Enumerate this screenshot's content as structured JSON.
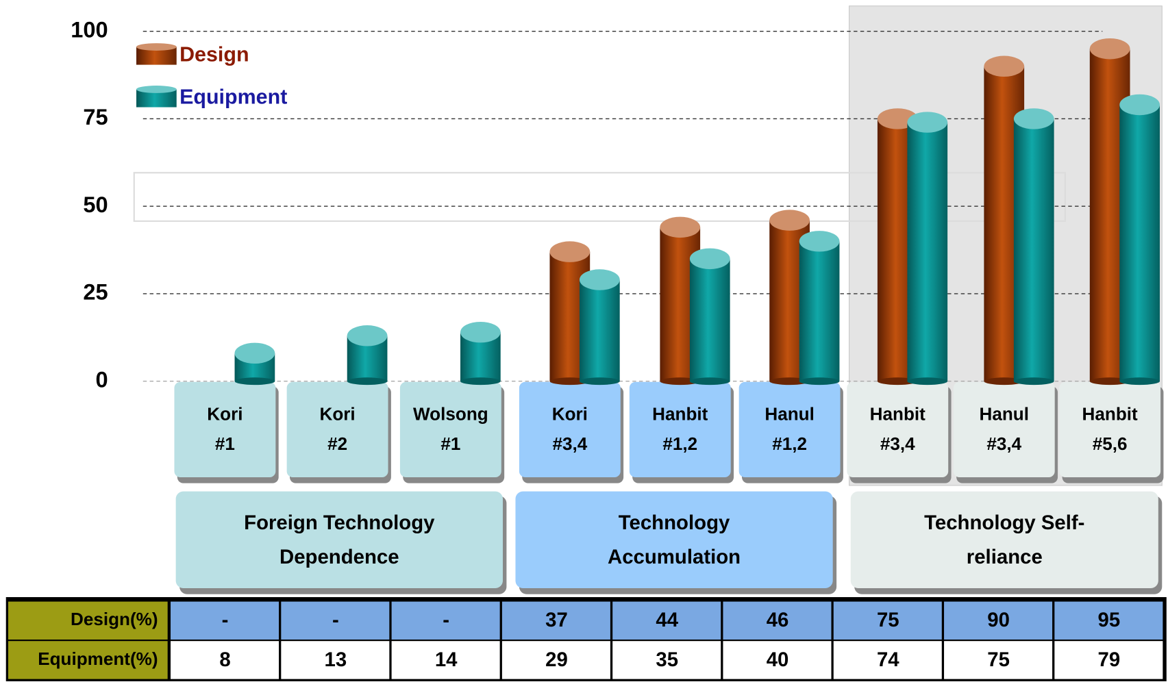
{
  "chart_data": {
    "type": "bar",
    "categories": [
      "Kori #1",
      "Kori #2",
      "Wolsong #1",
      "Kori #3,4",
      "Hanbit #1,2",
      "Hanul #1,2",
      "Hanbit #3,4",
      "Hanul #3,4",
      "Hanbit #5,6"
    ],
    "groups": [
      "Foreign Technology Dependence",
      "Technology Accumulation",
      "Technology Self-reliance"
    ],
    "series": [
      {
        "name": "Design",
        "color": "#a8420c",
        "values": [
          null,
          null,
          null,
          37,
          44,
          46,
          75,
          90,
          95
        ],
        "value_labels": [
          "-",
          "-",
          "-",
          "37",
          "44",
          "46",
          "75",
          "90",
          "95"
        ]
      },
      {
        "name": "Equipment",
        "color": "#0c9494",
        "values": [
          8,
          13,
          14,
          29,
          35,
          40,
          74,
          75,
          79
        ]
      }
    ],
    "table_row_labels": [
      "Design(%)",
      "Equipment(%)"
    ],
    "ylim": [
      0,
      100
    ],
    "yticks": [
      0,
      25,
      50,
      75,
      100
    ],
    "grid": true
  }
}
